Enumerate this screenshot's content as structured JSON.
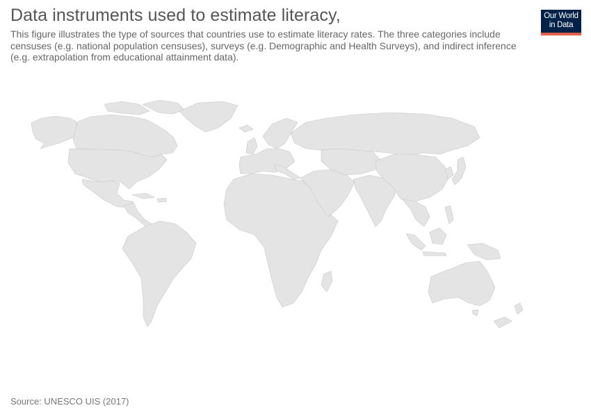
{
  "header": {
    "title": "Data instruments used to estimate literacy,",
    "subtitle": "This figure illustrates the type of sources that countries use to estimate literacy rates. The three categories include censuses (e.g. national population censuses), surveys (e.g. Demographic and Health Surveys), and indirect inference (e.g. extrapolation from educational attainment data)."
  },
  "logo": {
    "line1": "Our World",
    "line2": "in Data",
    "background": "#002147",
    "accent": "#e5604b"
  },
  "map": {
    "fill_color": "#e4e4e4",
    "border_color": "#c7c7c7"
  },
  "footer": {
    "source": "Source: UNESCO UIS (2017)"
  }
}
